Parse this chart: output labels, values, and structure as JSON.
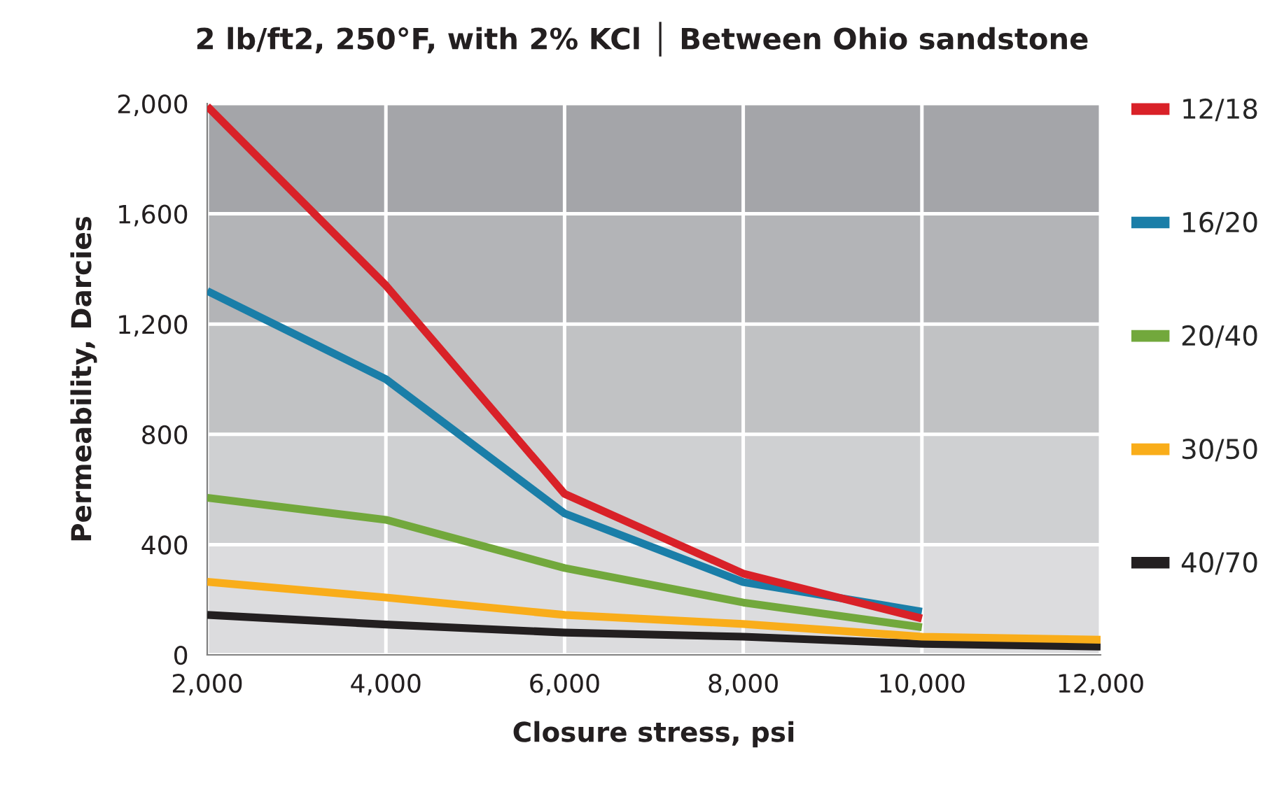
{
  "chart_data": {
    "type": "line",
    "title": "2 lb/ft2, 250°F, with 2% KCl │ Between Ohio sandstone",
    "xlabel": "Closure stress, psi",
    "ylabel": "Permeability, Darcies",
    "x": [
      2000,
      4000,
      6000,
      8000,
      10000,
      12000
    ],
    "series": [
      {
        "name": "12/18",
        "color": "#d92128",
        "values": [
          1990,
          1340,
          584,
          295,
          132,
          null
        ]
      },
      {
        "name": "16/20",
        "color": "#1a7ea8",
        "values": [
          1320,
          1000,
          513,
          264,
          157,
          null
        ]
      },
      {
        "name": "20/40",
        "color": "#72a83c",
        "values": [
          570,
          490,
          315,
          190,
          100,
          null
        ]
      },
      {
        "name": "30/50",
        "color": "#f9ad1a",
        "values": [
          265,
          208,
          145,
          112,
          66,
          55
        ]
      },
      {
        "name": "40/70",
        "color": "#231f20",
        "values": [
          145,
          110,
          81,
          66,
          40,
          30
        ]
      }
    ],
    "xlim": [
      2000,
      12000
    ],
    "xticks": [
      {
        "value": 2000,
        "label": "2,000"
      },
      {
        "value": 4000,
        "label": "4,000"
      },
      {
        "value": 6000,
        "label": "6,000"
      },
      {
        "value": 8000,
        "label": "8,000"
      },
      {
        "value": 10000,
        "label": "10,000"
      },
      {
        "value": 12000,
        "label": "12,000"
      }
    ],
    "ylim": [
      0,
      2000
    ],
    "yticks": [
      0,
      400,
      800,
      {
        "value": 1200,
        "label": "1,200"
      },
      {
        "value": 1600,
        "label": "1,600"
      },
      {
        "value": 2000,
        "label": "2,000"
      }
    ],
    "bands": [
      {
        "axis": "y",
        "from": 0,
        "to": 400,
        "color": "#dcdcde"
      },
      {
        "axis": "y",
        "from": 400,
        "to": 800,
        "color": "#cfd0d2"
      },
      {
        "axis": "y",
        "from": 800,
        "to": 1200,
        "color": "#c1c2c4"
      },
      {
        "axis": "y",
        "from": 1200,
        "to": 1600,
        "color": "#b3b4b7"
      },
      {
        "axis": "y",
        "from": 1600,
        "to": 2000,
        "color": "#a4a5a9"
      }
    ],
    "grid": true,
    "legend": "right",
    "marker": "none",
    "line_style": "solid"
  }
}
